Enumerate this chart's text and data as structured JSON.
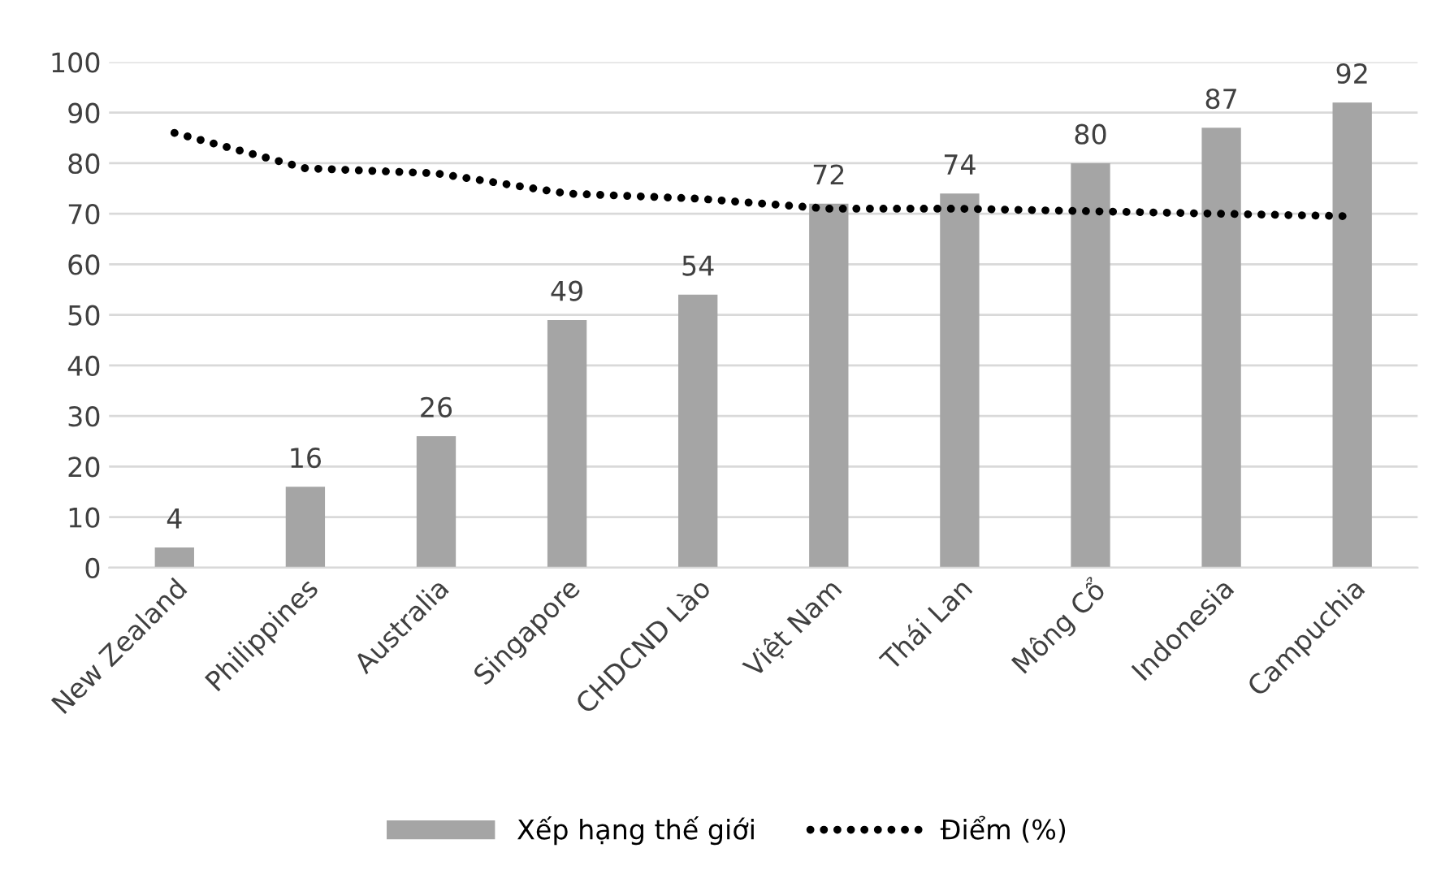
{
  "chart_data": {
    "type": "bar",
    "categories": [
      "New Zealand",
      "Philippines",
      "Australia",
      "Singapore",
      "CHDCND Lào",
      "Việt Nam",
      "Thái Lan",
      "Mông Cổ",
      "Indonesia",
      "Campuchia"
    ],
    "series": [
      {
        "name": "Xếp hạng thế giới",
        "color": "#a5a5a5",
        "values": [
          4,
          16,
          26,
          49,
          54,
          72,
          74,
          80,
          87,
          92
        ],
        "value_labels": [
          "4",
          "16",
          "26",
          "49",
          "54",
          "72",
          "74",
          "80",
          "87",
          "92"
        ]
      },
      {
        "name": "Điểm (%)",
        "type": "line",
        "color": "#000000",
        "line_style": "dotted",
        "marker": "none",
        "values": [
          86,
          79,
          78,
          74,
          73,
          71,
          71,
          70.5,
          70,
          69.5
        ]
      }
    ],
    "ylim": [
      0,
      100
    ],
    "yticks": [
      0,
      10,
      20,
      30,
      40,
      50,
      60,
      70,
      80,
      90,
      100
    ],
    "grid": "y",
    "legend": "bottom"
  }
}
